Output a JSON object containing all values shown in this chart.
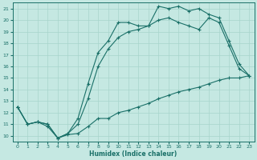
{
  "xlabel": "Humidex (Indice chaleur)",
  "bg_color": "#c5e8e2",
  "line_color": "#1a7068",
  "grid_color": "#a8d4cc",
  "xlim": [
    -0.5,
    23.5
  ],
  "ylim": [
    9.5,
    21.5
  ],
  "xticks": [
    0,
    1,
    2,
    3,
    4,
    5,
    6,
    7,
    8,
    9,
    10,
    11,
    12,
    13,
    14,
    15,
    16,
    17,
    18,
    19,
    20,
    21,
    22,
    23
  ],
  "yticks": [
    10,
    11,
    12,
    13,
    14,
    15,
    16,
    17,
    18,
    19,
    20,
    21
  ],
  "line1_x": [
    0,
    1,
    2,
    3,
    4,
    5,
    6,
    7,
    8,
    9,
    10,
    11,
    12,
    13,
    14,
    15,
    16,
    17,
    18,
    19,
    20,
    21,
    22,
    23
  ],
  "line1_y": [
    12.5,
    11.0,
    11.2,
    10.8,
    9.8,
    10.1,
    10.2,
    10.8,
    11.5,
    11.5,
    12.0,
    12.2,
    12.5,
    12.8,
    13.2,
    13.5,
    13.8,
    14.0,
    14.2,
    14.5,
    14.8,
    15.0,
    15.0,
    15.2
  ],
  "line2_x": [
    0,
    1,
    2,
    3,
    4,
    5,
    6,
    7,
    8,
    9,
    10,
    11,
    12,
    13,
    14,
    15,
    16,
    17,
    18,
    19,
    20,
    21,
    22,
    23
  ],
  "line2_y": [
    12.5,
    11.0,
    11.2,
    11.0,
    9.8,
    10.2,
    11.0,
    13.2,
    16.0,
    17.5,
    18.5,
    19.0,
    19.2,
    19.5,
    20.0,
    20.2,
    19.8,
    19.5,
    19.2,
    20.2,
    19.8,
    17.8,
    15.8,
    15.2
  ],
  "line3_x": [
    0,
    1,
    2,
    3,
    4,
    5,
    6,
    7,
    8,
    9,
    10,
    11,
    12,
    13,
    14,
    15,
    16,
    17,
    18,
    19,
    20,
    21,
    22,
    23
  ],
  "line3_y": [
    12.5,
    11.0,
    11.2,
    11.0,
    9.8,
    10.2,
    11.5,
    14.5,
    17.2,
    18.2,
    19.8,
    19.8,
    19.5,
    19.5,
    21.2,
    21.0,
    21.2,
    20.8,
    21.0,
    20.5,
    20.2,
    18.2,
    16.2,
    15.2
  ]
}
